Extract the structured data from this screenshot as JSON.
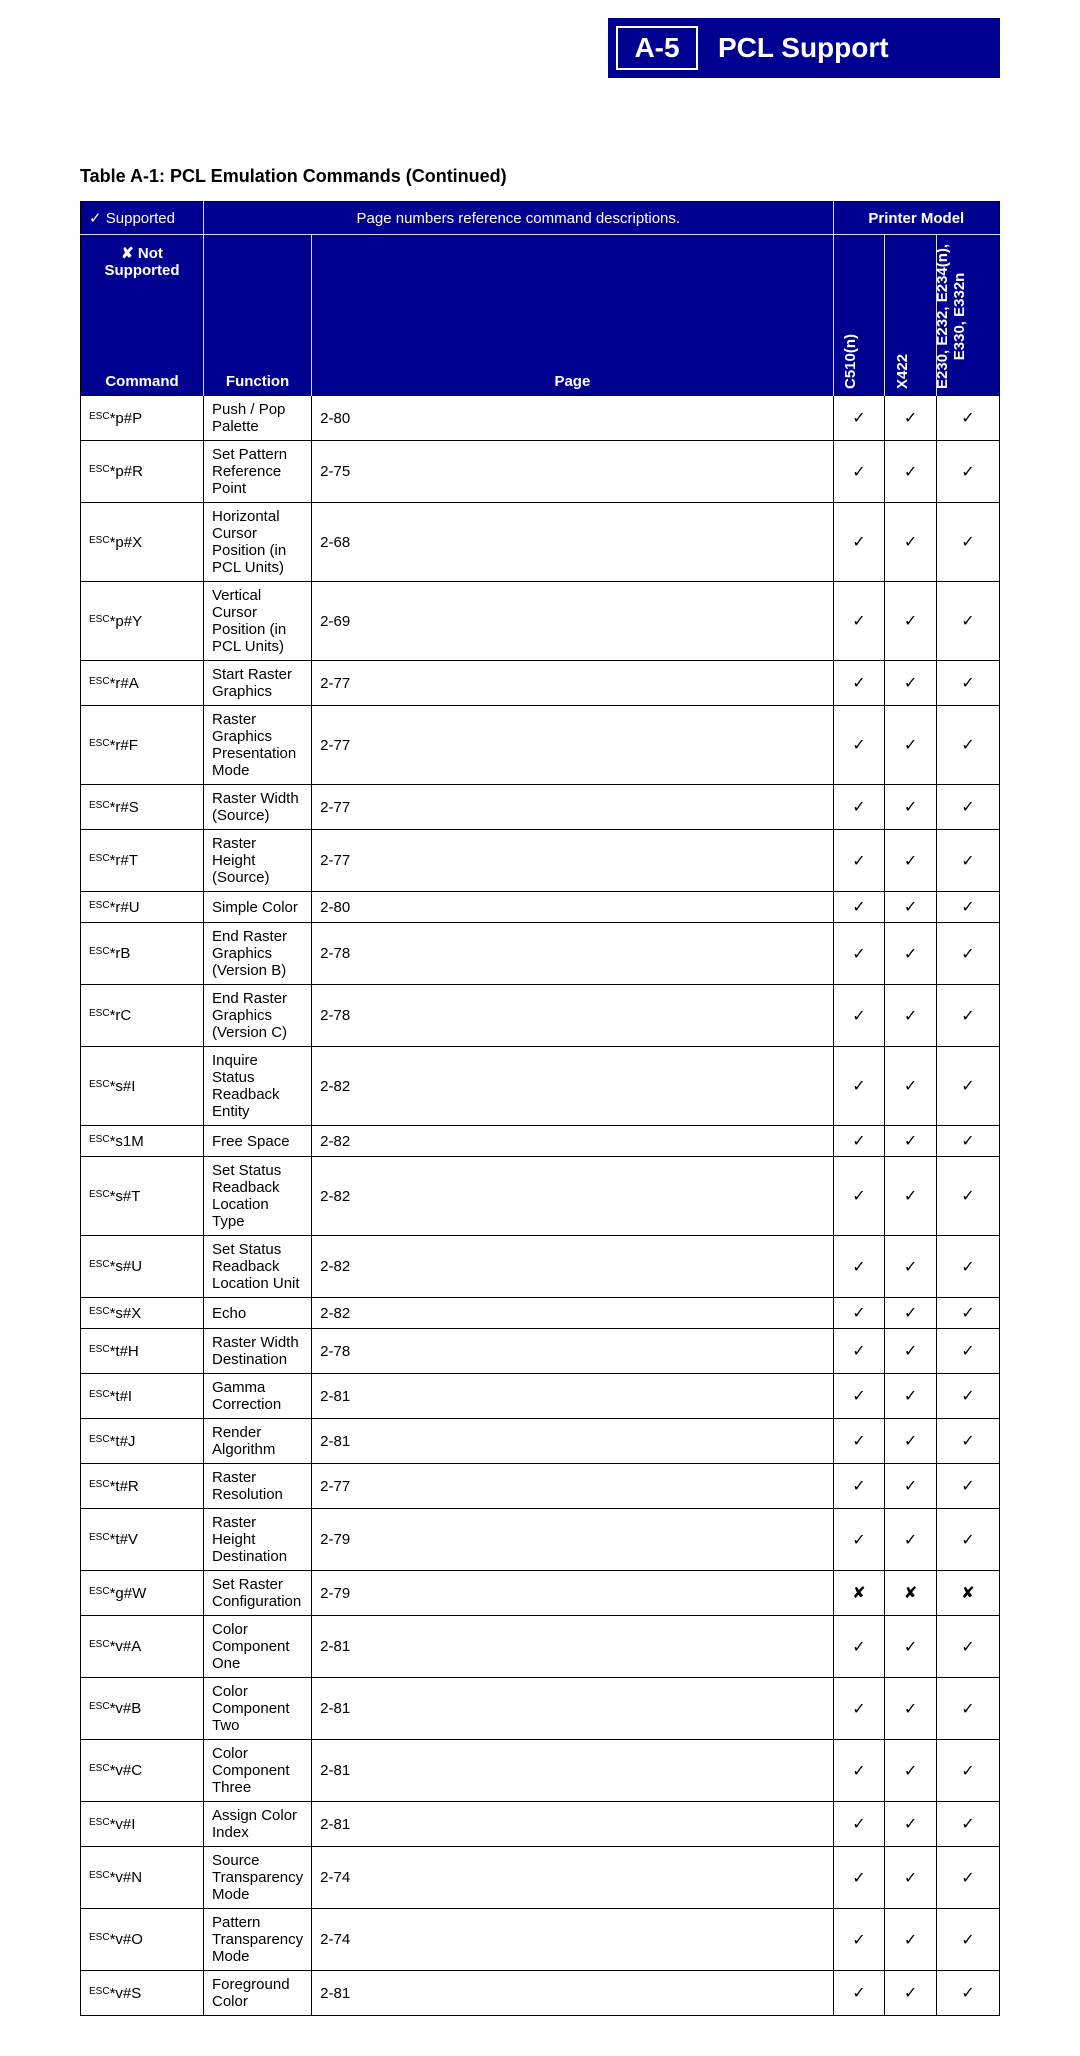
{
  "banner": {
    "code": "A-5",
    "title": "PCL Support"
  },
  "tableTitle": "Table A-1:  PCL Emulation Commands (Continued)",
  "legend": {
    "supported": "Supported",
    "notSupported": "Not Supported",
    "pageNote": "Page numbers reference command descriptions.",
    "printerModel": "Printer Model",
    "command": "Command",
    "function": "Function",
    "page": "Page"
  },
  "symbols": {
    "check": "✓",
    "cross": "✘"
  },
  "models": [
    "C510(n)",
    "X422",
    "E230, E232, E234(n), E330, E332n"
  ],
  "modelsSplit": [
    "E230, E232, E234(n),",
    "E330, E332n"
  ],
  "columnWidths": {
    "command": "160px",
    "function": "auto",
    "page": "72px",
    "model": "60px",
    "modelLast": "100px"
  },
  "rows": [
    {
      "cmd": "*p#P",
      "func": "Push / Pop Palette",
      "page": "2-80",
      "m": [
        true,
        true,
        true
      ]
    },
    {
      "cmd": "*p#R",
      "func": "Set Pattern Reference Point",
      "page": "2-75",
      "m": [
        true,
        true,
        true
      ]
    },
    {
      "cmd": "*p#X",
      "func": "Horizontal Cursor Position (in PCL Units)",
      "page": "2-68",
      "m": [
        true,
        true,
        true
      ]
    },
    {
      "cmd": "*p#Y",
      "func": "Vertical Cursor Position (in PCL Units)",
      "page": "2-69",
      "m": [
        true,
        true,
        true
      ]
    },
    {
      "cmd": "*r#A",
      "func": "Start Raster Graphics",
      "page": "2-77",
      "m": [
        true,
        true,
        true
      ]
    },
    {
      "cmd": "*r#F",
      "func": "Raster Graphics Presentation Mode",
      "page": "2-77",
      "m": [
        true,
        true,
        true
      ]
    },
    {
      "cmd": "*r#S",
      "func": "Raster Width (Source)",
      "page": "2-77",
      "m": [
        true,
        true,
        true
      ]
    },
    {
      "cmd": "*r#T",
      "func": "Raster Height (Source)",
      "page": "2-77",
      "m": [
        true,
        true,
        true
      ]
    },
    {
      "cmd": "*r#U",
      "func": "Simple Color",
      "page": "2-80",
      "m": [
        true,
        true,
        true
      ]
    },
    {
      "cmd": "*rB",
      "func": "End Raster Graphics (Version B)",
      "page": "2-78",
      "m": [
        true,
        true,
        true
      ]
    },
    {
      "cmd": "*rC",
      "func": "End Raster Graphics (Version C)",
      "page": "2-78",
      "m": [
        true,
        true,
        true
      ]
    },
    {
      "cmd": "*s#I",
      "func": "Inquire Status Readback Entity",
      "page": "2-82",
      "m": [
        true,
        true,
        true
      ]
    },
    {
      "cmd": "*s1M",
      "func": "Free Space",
      "page": "2-82",
      "m": [
        true,
        true,
        true
      ]
    },
    {
      "cmd": "*s#T",
      "func": "Set Status Readback Location Type",
      "page": "2-82",
      "m": [
        true,
        true,
        true
      ]
    },
    {
      "cmd": "*s#U",
      "func": "Set Status Readback Location Unit",
      "page": "2-82",
      "m": [
        true,
        true,
        true
      ]
    },
    {
      "cmd": "*s#X",
      "func": "Echo",
      "page": "2-82",
      "m": [
        true,
        true,
        true
      ]
    },
    {
      "cmd": "*t#H",
      "func": "Raster Width Destination",
      "page": "2-78",
      "m": [
        true,
        true,
        true
      ]
    },
    {
      "cmd": "*t#I",
      "func": "Gamma Correction",
      "page": "2-81",
      "m": [
        true,
        true,
        true
      ]
    },
    {
      "cmd": "*t#J",
      "func": "Render Algorithm",
      "page": "2-81",
      "m": [
        true,
        true,
        true
      ]
    },
    {
      "cmd": "*t#R",
      "func": "Raster Resolution",
      "page": "2-77",
      "m": [
        true,
        true,
        true
      ]
    },
    {
      "cmd": "*t#V",
      "func": "Raster Height Destination",
      "page": "2-79",
      "m": [
        true,
        true,
        true
      ]
    },
    {
      "cmd": "*g#W",
      "func": "Set Raster Configuration",
      "page": "2-79",
      "m": [
        false,
        false,
        false
      ]
    },
    {
      "cmd": "*v#A",
      "func": "Color Component One",
      "page": "2-81",
      "m": [
        true,
        true,
        true
      ]
    },
    {
      "cmd": "*v#B",
      "func": "Color Component Two",
      "page": "2-81",
      "m": [
        true,
        true,
        true
      ]
    },
    {
      "cmd": "*v#C",
      "func": "Color Component Three",
      "page": "2-81",
      "m": [
        true,
        true,
        true
      ]
    },
    {
      "cmd": "*v#I",
      "func": "Assign Color Index",
      "page": "2-81",
      "m": [
        true,
        true,
        true
      ]
    },
    {
      "cmd": "*v#N",
      "func": "Source Transparency Mode",
      "page": "2-74",
      "m": [
        true,
        true,
        true
      ]
    },
    {
      "cmd": "*v#O",
      "func": "Pattern Transparency Mode",
      "page": "2-74",
      "m": [
        true,
        true,
        true
      ]
    },
    {
      "cmd": "*v#S",
      "func": "Foreground Color",
      "page": "2-81",
      "m": [
        true,
        true,
        true
      ]
    }
  ]
}
